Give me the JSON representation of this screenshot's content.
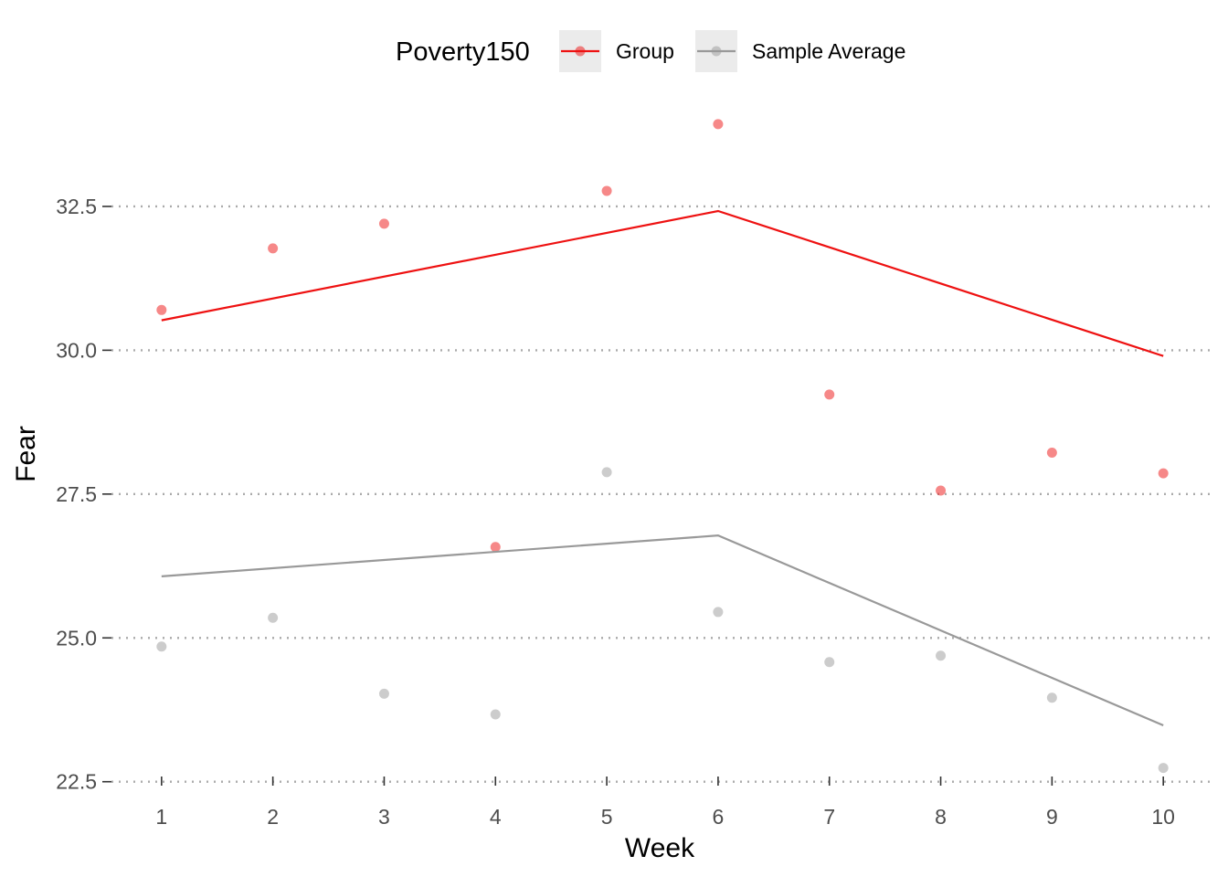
{
  "chart_data": {
    "type": "line",
    "xlabel": "Week",
    "ylabel": "Fear",
    "x": [
      1,
      2,
      3,
      4,
      5,
      6,
      7,
      8,
      9,
      10
    ],
    "xlim": [
      0.55,
      10.45
    ],
    "ylim": [
      22.4,
      34.5
    ],
    "yticks": [
      22.5,
      25.0,
      27.5,
      30.0,
      32.5
    ],
    "ytick_labels": [
      "22.5",
      "25.0",
      "27.5",
      "30.0",
      "32.5"
    ],
    "xtick_labels": [
      "1",
      "2",
      "3",
      "4",
      "5",
      "6",
      "7",
      "8",
      "9",
      "10"
    ],
    "grid": "horizontal dotted",
    "legend": {
      "title": "Poverty150",
      "position": "top",
      "entries": [
        "Group",
        "Sample Average"
      ]
    },
    "series": [
      {
        "name": "Group",
        "color": "#ee1111",
        "points": [
          30.7,
          31.77,
          32.2,
          26.58,
          32.77,
          33.93,
          29.23,
          27.56,
          28.22,
          27.86
        ],
        "fit_x": [
          1,
          6,
          10
        ],
        "fit_y": [
          30.52,
          32.42,
          29.9
        ]
      },
      {
        "name": "Sample Average",
        "color": "#999999",
        "points": [
          24.85,
          25.35,
          24.03,
          23.67,
          27.88,
          25.45,
          24.58,
          24.69,
          23.96,
          22.74
        ],
        "fit_x": [
          1,
          6,
          10
        ],
        "fit_y": [
          26.07,
          26.78,
          23.48
        ]
      }
    ]
  }
}
